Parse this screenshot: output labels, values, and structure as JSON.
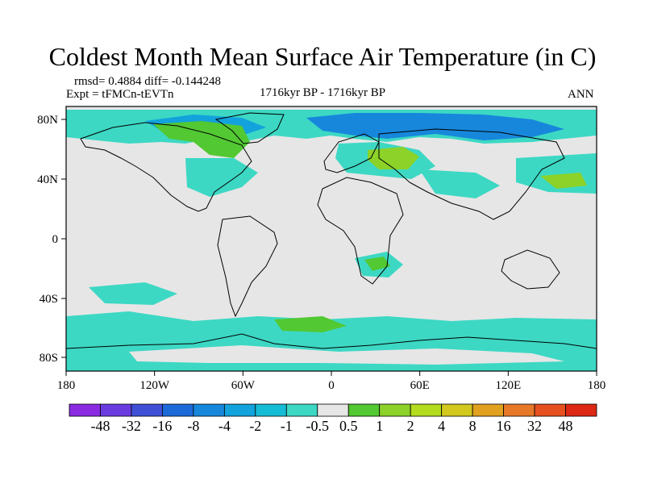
{
  "title": "Coldest Month Mean Surface Air Temperature (in C)",
  "rmsd_text": "rmsd= 0.4884 diff= -0.144248",
  "expt_text": "Expt = tFMCn-tEVTn",
  "period_text": "1716kyr BP - 1716kyr BP",
  "season_text": "ANN",
  "lat_ticks": [
    "80N",
    "40N",
    "0",
    "40S",
    "80S"
  ],
  "lon_ticks": [
    "180",
    "120W",
    "60W",
    "0",
    "60E",
    "120E",
    "180"
  ],
  "colorbar": {
    "labels": [
      "-48",
      "-32",
      "-16",
      "-8",
      "-4",
      "-2",
      "-1",
      "-0.5",
      "0.5",
      "1",
      "2",
      "4",
      "8",
      "16",
      "32",
      "48"
    ],
    "colors": [
      "#8a2be2",
      "#6a3ce0",
      "#3f4fd6",
      "#1c6ad8",
      "#1787dc",
      "#12a2dc",
      "#15bcd6",
      "#3cd8c4",
      "#e6e6e6",
      "#52c832",
      "#8cd228",
      "#b4dc1e",
      "#d2c81e",
      "#e1a01e",
      "#e67828",
      "#e6501e",
      "#dc2814"
    ]
  },
  "colors": {
    "neutral": "#e6e6e6",
    "cyan": "#3cd8c4",
    "cyan_dark": "#15bcd6",
    "blue": "#12a2dc",
    "blue_dark": "#1787dc",
    "green": "#52c832",
    "yellow_green": "#8cd228",
    "coast": "#000000"
  }
}
